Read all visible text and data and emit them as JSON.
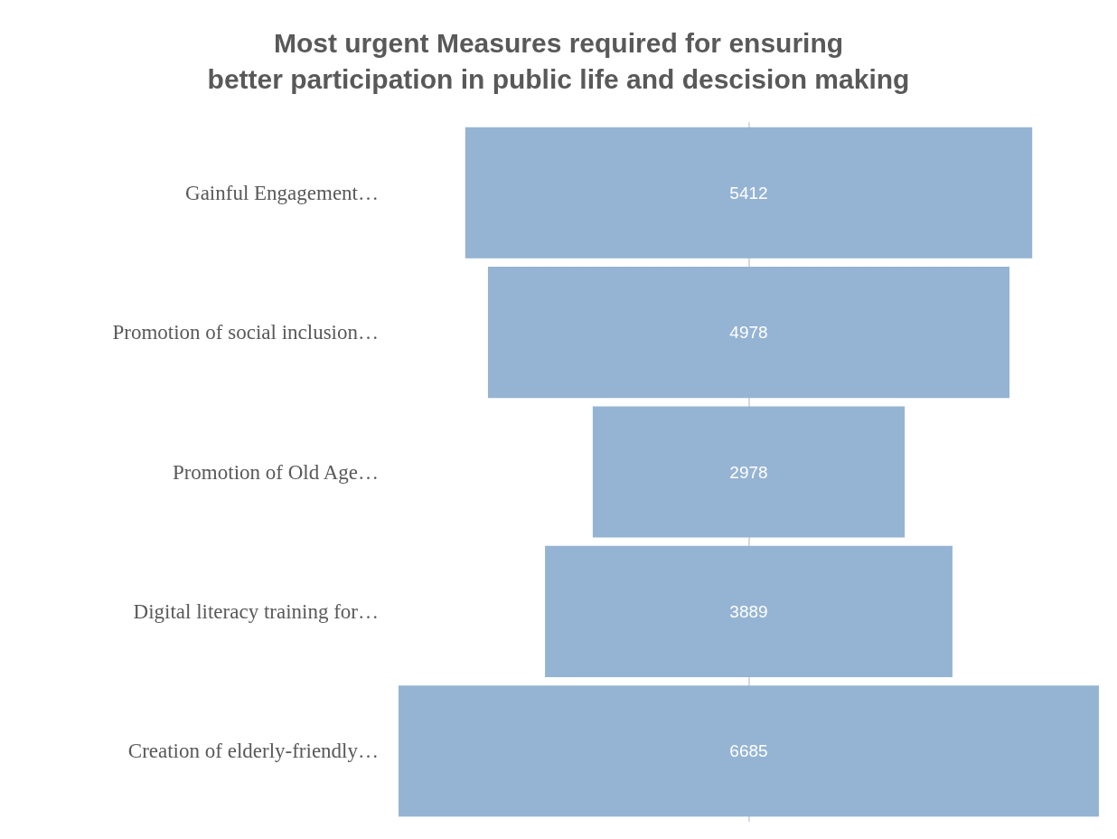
{
  "chart_data": {
    "type": "other",
    "title": "Most urgent Measures required for ensuring\nbetter participation in public life and descision making",
    "categories": [
      "Gainful Engagement…",
      "Promotion of social inclusion…",
      "Promotion of Old Age…",
      "Digital literacy training for…",
      "Creation of elderly-friendly…"
    ],
    "values": [
      5412,
      4978,
      2978,
      3889,
      6685
    ],
    "color": "#95b4d3",
    "data_labels": true
  }
}
